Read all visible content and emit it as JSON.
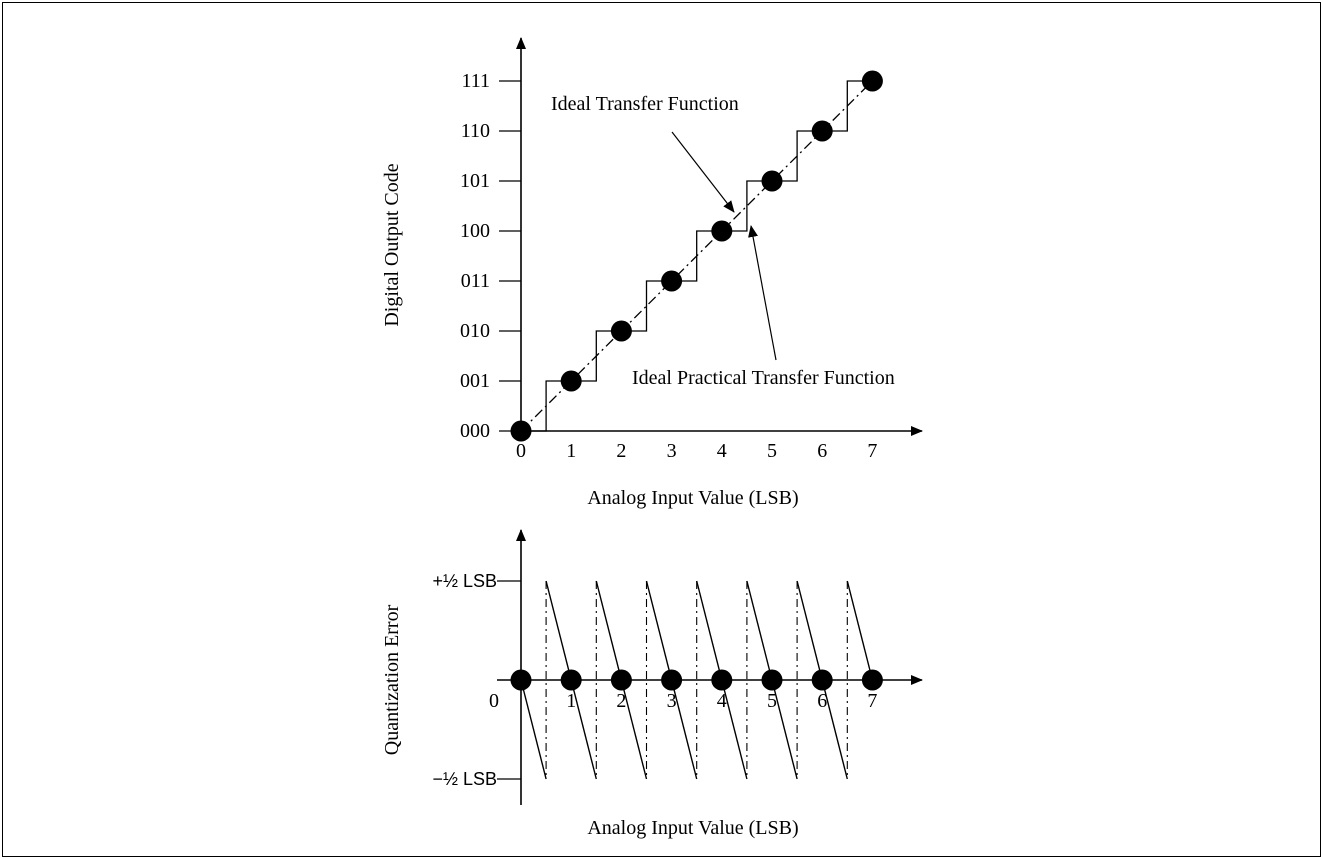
{
  "chart_data": [
    {
      "type": "line",
      "xlabel": "Analog Input Value (LSB)",
      "ylabel": "Digital Output Code",
      "x_ticks": [
        "0",
        "1",
        "2",
        "3",
        "4",
        "5",
        "6",
        "7"
      ],
      "y_ticks": [
        "000",
        "001",
        "010",
        "011",
        "100",
        "101",
        "110",
        "111"
      ],
      "xlim": [
        0,
        7
      ],
      "ylim": [
        0,
        7
      ],
      "annotations": [
        "Ideal Transfer Function",
        "Ideal Practical Transfer Function"
      ],
      "series": [
        {
          "name": "Ideal Transfer Function",
          "style": "dash-dot",
          "x": [
            0,
            7
          ],
          "y": [
            0,
            7
          ]
        },
        {
          "name": "Ideal Practical Transfer Function",
          "style": "staircase",
          "x": [
            0,
            0.5,
            0.5,
            1.5,
            1.5,
            2.5,
            2.5,
            3.5,
            3.5,
            4.5,
            4.5,
            5.5,
            5.5,
            6.5,
            6.5,
            7
          ],
          "y": [
            0,
            0,
            1,
            1,
            2,
            2,
            3,
            3,
            4,
            4,
            5,
            5,
            6,
            6,
            7,
            7
          ]
        },
        {
          "style": "markers",
          "x": [
            0,
            1,
            2,
            3,
            4,
            5,
            6,
            7
          ],
          "y": [
            0,
            1,
            2,
            3,
            4,
            5,
            6,
            7
          ]
        }
      ]
    },
    {
      "type": "line",
      "xlabel": "Analog Input Value (LSB)",
      "ylabel": "Quantization Error",
      "x_ticks": [
        "0",
        "1",
        "2",
        "3",
        "4",
        "5",
        "6",
        "7"
      ],
      "y_ticks": [
        "+½ LSB",
        "−½ LSB"
      ],
      "y_tick_values": [
        0.5,
        -0.5
      ],
      "xlim": [
        0,
        7
      ],
      "ylim": [
        -0.5,
        0.5
      ],
      "series": [
        {
          "style": "sawtooth",
          "x": [
            0,
            0.5,
            0.5,
            1.5,
            1.5,
            2.5,
            2.5,
            3.5,
            3.5,
            4.5,
            4.5,
            5.5,
            5.5,
            6.5,
            6.5,
            7
          ],
          "y": [
            0,
            -0.5,
            0.5,
            -0.5,
            0.5,
            -0.5,
            0.5,
            -0.5,
            0.5,
            -0.5,
            0.5,
            -0.5,
            0.5,
            -0.5,
            0.5,
            0
          ]
        },
        {
          "style": "markers",
          "x": [
            0,
            1,
            2,
            3,
            4,
            5,
            6,
            7
          ],
          "y": [
            0,
            0,
            0,
            0,
            0,
            0,
            0,
            0
          ]
        }
      ]
    }
  ]
}
